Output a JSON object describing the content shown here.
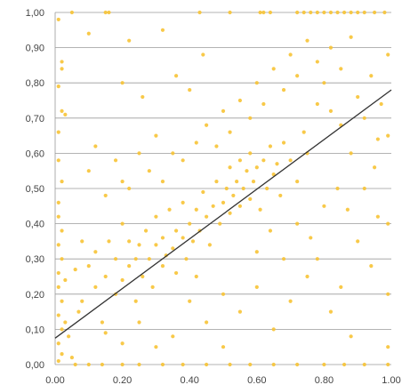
{
  "chart_data": {
    "type": "scatter",
    "xlim": [
      0,
      1
    ],
    "ylim": [
      0,
      1
    ],
    "xticks": [
      "0.00",
      "0.20",
      "0.40",
      "0.60",
      "0.80",
      "1.00"
    ],
    "yticks": [
      "0,00",
      "0,10",
      "0,20",
      "0,30",
      "0,40",
      "0,50",
      "0,60",
      "0,70",
      "0,80",
      "0,90",
      "1,00"
    ],
    "grid": "horizontal",
    "point_color": "#F7C335",
    "line_color": "#333333",
    "trend_line": {
      "x": [
        0,
        1
      ],
      "y": [
        0.075,
        0.78
      ]
    },
    "series": [
      {
        "points": [
          [
            0.01,
            0.98
          ],
          [
            0.02,
            0.86
          ],
          [
            0.01,
            0.79
          ],
          [
            0.02,
            0.72
          ],
          [
            0.01,
            0.66
          ],
          [
            0.01,
            0.58
          ],
          [
            0.02,
            0.52
          ],
          [
            0.01,
            0.46
          ],
          [
            0.01,
            0.42
          ],
          [
            0.02,
            0.38
          ],
          [
            0.01,
            0.34
          ],
          [
            0.02,
            0.3
          ],
          [
            0.01,
            0.26
          ],
          [
            0.01,
            0.22
          ],
          [
            0.02,
            0.18
          ],
          [
            0.01,
            0.14
          ],
          [
            0.02,
            0.1
          ],
          [
            0.01,
            0.06
          ],
          [
            0.02,
            0.03
          ],
          [
            0.01,
            0.01
          ],
          [
            0.03,
            0.12
          ],
          [
            0.03,
            0.24
          ],
          [
            0.04,
            0.08
          ],
          [
            0.05,
            0.02
          ],
          [
            0.02,
            0.84
          ],
          [
            0.03,
            0.71
          ],
          [
            0.1,
            0.94
          ],
          [
            0.06,
            0.27
          ],
          [
            0.08,
            0.35
          ],
          [
            0.07,
            0.15
          ],
          [
            0.05,
            1.0
          ],
          [
            0.15,
            1.0
          ],
          [
            0.16,
            1.0
          ],
          [
            0.43,
            1.0
          ],
          [
            0.52,
            1.0
          ],
          [
            0.61,
            1.0
          ],
          [
            0.62,
            1.0
          ],
          [
            0.64,
            1.0
          ],
          [
            0.72,
            1.0
          ],
          [
            0.74,
            1.0
          ],
          [
            0.76,
            1.0
          ],
          [
            0.78,
            1.0
          ],
          [
            0.8,
            1.0
          ],
          [
            0.82,
            1.0
          ],
          [
            0.84,
            1.0
          ],
          [
            0.86,
            1.0
          ],
          [
            0.88,
            1.0
          ],
          [
            0.9,
            1.0
          ],
          [
            0.92,
            1.0
          ],
          [
            0.95,
            1.0
          ],
          [
            0.98,
            1.0
          ],
          [
            0.06,
            0.0
          ],
          [
            0.1,
            0.0
          ],
          [
            0.14,
            0.0
          ],
          [
            0.2,
            0.0
          ],
          [
            0.25,
            0.0
          ],
          [
            0.32,
            0.0
          ],
          [
            0.38,
            0.0
          ],
          [
            0.45,
            0.0
          ],
          [
            0.52,
            0.0
          ],
          [
            0.58,
            0.0
          ],
          [
            0.65,
            0.0
          ],
          [
            0.72,
            0.0
          ],
          [
            0.8,
            0.0
          ],
          [
            0.86,
            0.0
          ],
          [
            0.92,
            0.0
          ],
          [
            0.99,
            0.0
          ],
          [
            0.99,
            0.05
          ],
          [
            0.99,
            0.2
          ],
          [
            0.99,
            0.4
          ],
          [
            0.99,
            0.65
          ],
          [
            0.99,
            0.88
          ],
          [
            0.08,
            0.18
          ],
          [
            0.1,
            0.28
          ],
          [
            0.12,
            0.22
          ],
          [
            0.12,
            0.32
          ],
          [
            0.14,
            0.12
          ],
          [
            0.15,
            0.25
          ],
          [
            0.16,
            0.35
          ],
          [
            0.18,
            0.2
          ],
          [
            0.18,
            0.3
          ],
          [
            0.2,
            0.24
          ],
          [
            0.2,
            0.4
          ],
          [
            0.22,
            0.28
          ],
          [
            0.22,
            0.35
          ],
          [
            0.24,
            0.18
          ],
          [
            0.24,
            0.3
          ],
          [
            0.25,
            0.34
          ],
          [
            0.26,
            0.25
          ],
          [
            0.27,
            0.38
          ],
          [
            0.28,
            0.3
          ],
          [
            0.29,
            0.22
          ],
          [
            0.3,
            0.34
          ],
          [
            0.3,
            0.42
          ],
          [
            0.32,
            0.28
          ],
          [
            0.32,
            0.36
          ],
          [
            0.33,
            0.31
          ],
          [
            0.34,
            0.44
          ],
          [
            0.35,
            0.33
          ],
          [
            0.36,
            0.26
          ],
          [
            0.36,
            0.38
          ],
          [
            0.38,
            0.36
          ],
          [
            0.38,
            0.46
          ],
          [
            0.39,
            0.3
          ],
          [
            0.4,
            0.4
          ],
          [
            0.41,
            0.35
          ],
          [
            0.42,
            0.44
          ],
          [
            0.43,
            0.38
          ],
          [
            0.44,
            0.49
          ],
          [
            0.45,
            0.42
          ],
          [
            0.46,
            0.34
          ],
          [
            0.47,
            0.45
          ],
          [
            0.48,
            0.52
          ],
          [
            0.49,
            0.4
          ],
          [
            0.5,
            0.46
          ],
          [
            0.51,
            0.5
          ],
          [
            0.52,
            0.43
          ],
          [
            0.52,
            0.56
          ],
          [
            0.53,
            0.48
          ],
          [
            0.54,
            0.52
          ],
          [
            0.55,
            0.45
          ],
          [
            0.55,
            0.58
          ],
          [
            0.56,
            0.5
          ],
          [
            0.57,
            0.55
          ],
          [
            0.58,
            0.47
          ],
          [
            0.58,
            0.6
          ],
          [
            0.59,
            0.52
          ],
          [
            0.6,
            0.56
          ],
          [
            0.61,
            0.44
          ],
          [
            0.62,
            0.58
          ],
          [
            0.63,
            0.5
          ],
          [
            0.64,
            0.62
          ],
          [
            0.65,
            0.54
          ],
          [
            0.66,
            0.57
          ],
          [
            0.67,
            0.48
          ],
          [
            0.68,
            0.63
          ],
          [
            0.7,
            0.58
          ],
          [
            0.72,
            0.52
          ],
          [
            0.74,
            0.66
          ],
          [
            0.75,
            0.6
          ],
          [
            0.1,
            0.55
          ],
          [
            0.12,
            0.62
          ],
          [
            0.15,
            0.48
          ],
          [
            0.18,
            0.58
          ],
          [
            0.2,
            0.52
          ],
          [
            0.22,
            0.5
          ],
          [
            0.25,
            0.6
          ],
          [
            0.28,
            0.55
          ],
          [
            0.3,
            0.65
          ],
          [
            0.32,
            0.52
          ],
          [
            0.35,
            0.6
          ],
          [
            0.38,
            0.58
          ],
          [
            0.42,
            0.63
          ],
          [
            0.45,
            0.68
          ],
          [
            0.48,
            0.62
          ],
          [
            0.5,
            0.72
          ],
          [
            0.52,
            0.66
          ],
          [
            0.55,
            0.75
          ],
          [
            0.58,
            0.7
          ],
          [
            0.6,
            0.8
          ],
          [
            0.62,
            0.74
          ],
          [
            0.65,
            0.84
          ],
          [
            0.68,
            0.78
          ],
          [
            0.7,
            0.88
          ],
          [
            0.72,
            0.82
          ],
          [
            0.75,
            0.92
          ],
          [
            0.78,
            0.86
          ],
          [
            0.8,
            0.8
          ],
          [
            0.82,
            0.9
          ],
          [
            0.85,
            0.84
          ],
          [
            0.88,
            0.93
          ],
          [
            0.9,
            0.76
          ],
          [
            0.92,
            0.7
          ],
          [
            0.94,
            0.82
          ],
          [
            0.96,
            0.64
          ],
          [
            0.97,
            0.74
          ],
          [
            0.95,
            0.56
          ],
          [
            0.92,
            0.5
          ],
          [
            0.88,
            0.6
          ],
          [
            0.85,
            0.68
          ],
          [
            0.82,
            0.72
          ],
          [
            0.78,
            0.74
          ],
          [
            0.4,
            0.78
          ],
          [
            0.36,
            0.82
          ],
          [
            0.44,
            0.88
          ],
          [
            0.26,
            0.76
          ],
          [
            0.2,
            0.8
          ],
          [
            0.32,
            0.95
          ],
          [
            0.22,
            0.92
          ],
          [
            0.4,
            0.18
          ],
          [
            0.45,
            0.12
          ],
          [
            0.5,
            0.2
          ],
          [
            0.55,
            0.15
          ],
          [
            0.6,
            0.22
          ],
          [
            0.65,
            0.1
          ],
          [
            0.7,
            0.18
          ],
          [
            0.75,
            0.25
          ],
          [
            0.78,
            0.3
          ],
          [
            0.82,
            0.15
          ],
          [
            0.85,
            0.22
          ],
          [
            0.88,
            0.08
          ],
          [
            0.9,
            0.35
          ],
          [
            0.94,
            0.28
          ],
          [
            0.96,
            0.42
          ],
          [
            0.6,
            0.32
          ],
          [
            0.64,
            0.38
          ],
          [
            0.68,
            0.3
          ],
          [
            0.72,
            0.4
          ],
          [
            0.76,
            0.36
          ],
          [
            0.8,
            0.45
          ],
          [
            0.84,
            0.5
          ],
          [
            0.87,
            0.44
          ],
          [
            0.3,
            0.05
          ],
          [
            0.35,
            0.08
          ],
          [
            0.25,
            0.12
          ],
          [
            0.2,
            0.06
          ],
          [
            0.15,
            0.09
          ],
          [
            0.5,
            0.05
          ],
          [
            0.42,
            0.25
          ]
        ]
      }
    ]
  }
}
